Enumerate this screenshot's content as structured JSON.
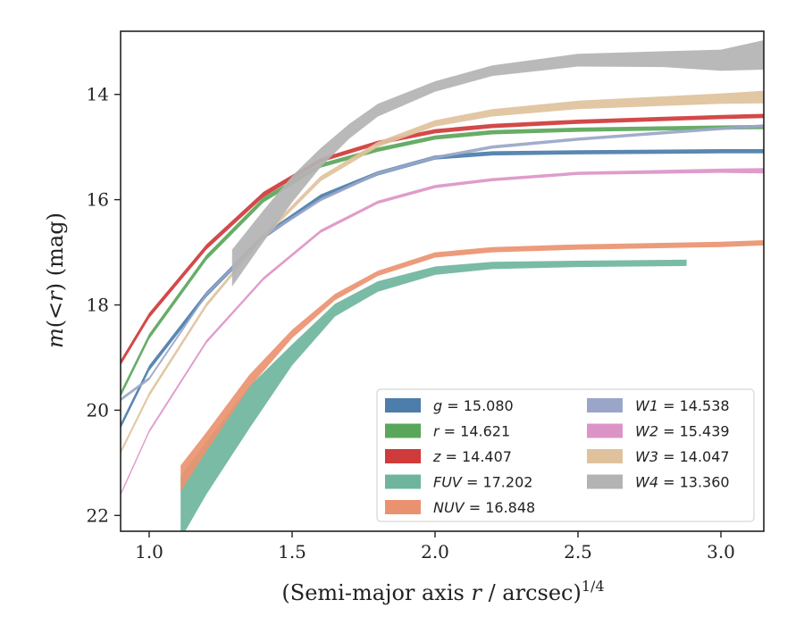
{
  "chart_data": {
    "type": "line",
    "title": "",
    "xlabel": "(Semi-major axis r / arcsec)^1/4",
    "xlabel_parts": {
      "main": "(Semi-major axis ",
      "var": "r",
      "mid": " / arcsec)",
      "sup": "1/4"
    },
    "ylabel": "m(<r) (mag)",
    "ylabel_parts": {
      "var": "m",
      "open": "(",
      "op": "<",
      "var2": "r",
      "close": ")",
      "unit": " (mag)"
    },
    "xlim": [
      0.9,
      3.15
    ],
    "ylim": [
      22.3,
      12.8
    ],
    "y_inverted": true,
    "xticks": [
      1.0,
      1.5,
      2.0,
      2.5,
      3.0
    ],
    "xtick_labels": [
      "1.0",
      "1.5",
      "2.0",
      "2.5",
      "3.0"
    ],
    "yticks": [
      14,
      16,
      18,
      20,
      22
    ],
    "ytick_labels": [
      "14",
      "16",
      "18",
      "20",
      "22"
    ],
    "grid": false,
    "legend_position": "bottom-right",
    "series": [
      {
        "name": "g",
        "value": "15.080",
        "color": "#4c7dab",
        "x": [
          0.9,
          1.0,
          1.2,
          1.4,
          1.6,
          1.8,
          2.0,
          2.2,
          2.5,
          3.0,
          3.15
        ],
        "y": [
          20.3,
          19.2,
          17.8,
          16.7,
          15.95,
          15.5,
          15.2,
          15.12,
          15.1,
          15.08,
          15.08
        ],
        "err": [
          0.05,
          0.05,
          0.05,
          0.05,
          0.05,
          0.04,
          0.04,
          0.04,
          0.04,
          0.04,
          0.04
        ]
      },
      {
        "name": "r",
        "value": "14.621",
        "color": "#5aa65a",
        "x": [
          0.9,
          1.0,
          1.2,
          1.4,
          1.6,
          1.8,
          2.0,
          2.2,
          2.5,
          3.0,
          3.15
        ],
        "y": [
          19.7,
          18.6,
          17.1,
          16.0,
          15.35,
          15.05,
          14.82,
          14.72,
          14.67,
          14.63,
          14.62
        ],
        "err": [
          0.05,
          0.05,
          0.05,
          0.05,
          0.04,
          0.04,
          0.04,
          0.04,
          0.04,
          0.04,
          0.04
        ]
      },
      {
        "name": "z",
        "value": "14.407",
        "color": "#cf3a3a",
        "x": [
          0.9,
          1.0,
          1.2,
          1.4,
          1.6,
          1.8,
          2.0,
          2.2,
          2.5,
          3.0,
          3.15
        ],
        "y": [
          19.1,
          18.2,
          16.9,
          15.9,
          15.25,
          14.92,
          14.7,
          14.6,
          14.52,
          14.43,
          14.41
        ],
        "err": [
          0.05,
          0.05,
          0.05,
          0.05,
          0.04,
          0.04,
          0.04,
          0.04,
          0.04,
          0.04,
          0.04
        ]
      },
      {
        "name": "FUV",
        "value": "17.202",
        "color": "#6fb59d",
        "x": [
          1.11,
          1.2,
          1.35,
          1.5,
          1.65,
          1.8,
          2.0,
          2.2,
          2.5,
          2.88
        ],
        "y": [
          21.85,
          21.1,
          19.95,
          18.95,
          18.1,
          17.65,
          17.35,
          17.25,
          17.22,
          17.2
        ],
        "err": [
          0.6,
          0.5,
          0.4,
          0.2,
          0.12,
          0.1,
          0.08,
          0.07,
          0.06,
          0.06
        ]
      },
      {
        "name": "NUV",
        "value": "16.848",
        "color": "#ea9270",
        "x": [
          1.11,
          1.2,
          1.35,
          1.5,
          1.65,
          1.8,
          2.0,
          2.2,
          2.5,
          3.0,
          3.15
        ],
        "y": [
          21.3,
          20.6,
          19.45,
          18.55,
          17.85,
          17.4,
          17.05,
          16.95,
          16.9,
          16.85,
          16.82
        ],
        "err": [
          0.25,
          0.18,
          0.12,
          0.08,
          0.06,
          0.05,
          0.05,
          0.05,
          0.05,
          0.05,
          0.05
        ]
      },
      {
        "name": "W1",
        "value": "14.538",
        "color": "#9aa6c8",
        "x": [
          0.9,
          1.0,
          1.2,
          1.4,
          1.6,
          1.8,
          2.0,
          2.2,
          2.5,
          3.0,
          3.15
        ],
        "y": [
          19.8,
          19.4,
          17.8,
          16.7,
          16.0,
          15.5,
          15.2,
          15.0,
          14.85,
          14.65,
          14.6
        ],
        "err": [
          0.03,
          0.03,
          0.03,
          0.03,
          0.03,
          0.03,
          0.03,
          0.03,
          0.03,
          0.03,
          0.03
        ]
      },
      {
        "name": "W2",
        "value": "15.439",
        "color": "#dc94c7",
        "x": [
          0.9,
          1.0,
          1.2,
          1.4,
          1.6,
          1.8,
          2.0,
          2.2,
          2.5,
          3.0,
          3.15
        ],
        "y": [
          21.6,
          20.4,
          18.7,
          17.5,
          16.6,
          16.05,
          15.75,
          15.62,
          15.5,
          15.45,
          15.45
        ],
        "err": [
          0.03,
          0.03,
          0.03,
          0.03,
          0.03,
          0.03,
          0.03,
          0.03,
          0.03,
          0.04,
          0.05
        ]
      },
      {
        "name": "W3",
        "value": "14.047",
        "color": "#dfc29c",
        "x": [
          0.9,
          1.0,
          1.2,
          1.4,
          1.6,
          1.8,
          2.0,
          2.2,
          2.5,
          3.0,
          3.15
        ],
        "y": [
          20.8,
          19.7,
          18.0,
          16.7,
          15.6,
          14.95,
          14.55,
          14.35,
          14.2,
          14.08,
          14.05
        ],
        "err": [
          0.04,
          0.04,
          0.04,
          0.04,
          0.05,
          0.05,
          0.06,
          0.07,
          0.08,
          0.1,
          0.12
        ]
      },
      {
        "name": "W4",
        "value": "13.360",
        "color": "#b3b3b3",
        "x": [
          1.29,
          1.4,
          1.5,
          1.6,
          1.7,
          1.8,
          2.0,
          2.2,
          2.5,
          2.8,
          3.0,
          3.15
        ],
        "y": [
          17.3,
          16.5,
          15.8,
          15.2,
          14.7,
          14.3,
          13.85,
          13.55,
          13.35,
          13.33,
          13.35,
          13.25
        ],
        "err": [
          0.35,
          0.3,
          0.25,
          0.18,
          0.14,
          0.12,
          0.1,
          0.1,
          0.12,
          0.15,
          0.2,
          0.28
        ]
      }
    ]
  },
  "legend": {
    "left": [
      {
        "label": "g",
        "value": "15.080",
        "color": "#4c7dab"
      },
      {
        "label": "r",
        "value": "14.621",
        "color": "#5aa65a"
      },
      {
        "label": "z",
        "value": "14.407",
        "color": "#cf3a3a"
      },
      {
        "label": "FUV",
        "value": "17.202",
        "color": "#6fb59d"
      },
      {
        "label": "NUV",
        "value": "16.848",
        "color": "#ea9270"
      }
    ],
    "right": [
      {
        "label": "W1",
        "value": "14.538",
        "color": "#9aa6c8"
      },
      {
        "label": "W2",
        "value": "15.439",
        "color": "#dc94c7"
      },
      {
        "label": "W3",
        "value": "14.047",
        "color": "#dfc29c"
      },
      {
        "label": "W4",
        "value": "13.360",
        "color": "#b3b3b3"
      }
    ]
  }
}
